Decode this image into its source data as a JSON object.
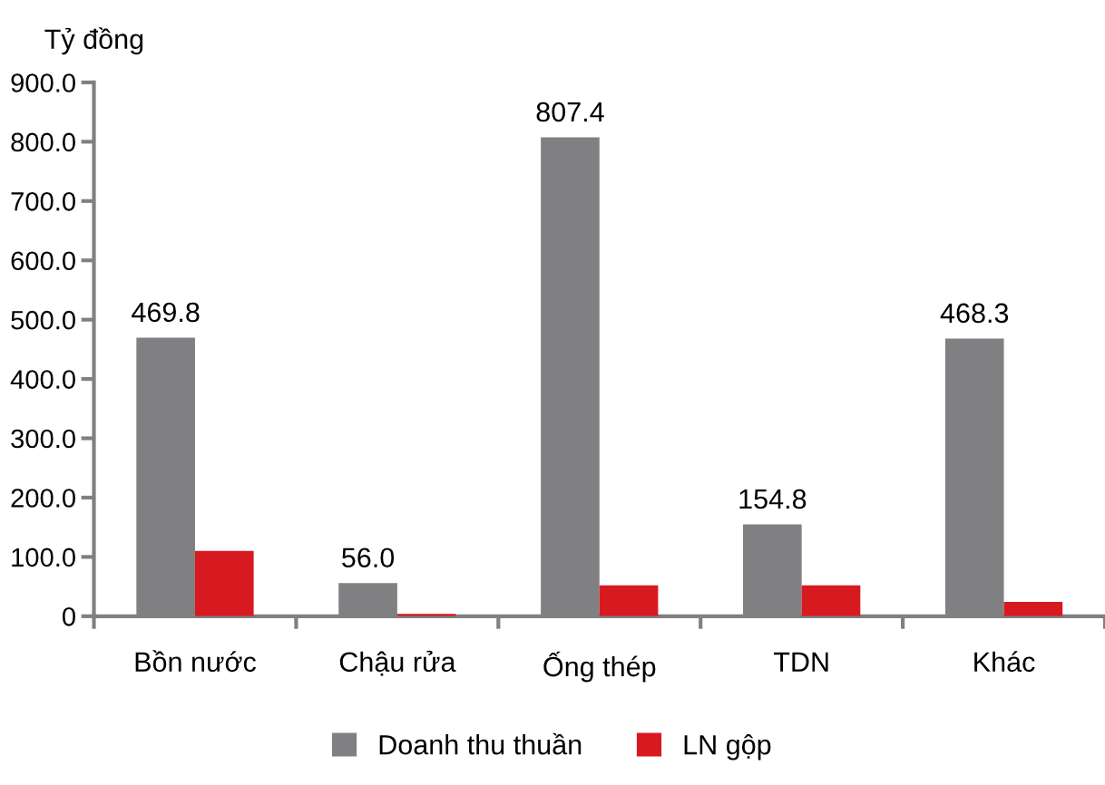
{
  "chart_data": {
    "type": "bar",
    "ylabel": "Tỷ đồng",
    "categories": [
      "Bồn nước",
      "Chậu rửa",
      "Ống thép",
      "TDN",
      "Khác"
    ],
    "series": [
      {
        "name": "Doanh thu thuần",
        "color": "#808083",
        "values": [
          469.8,
          56.0,
          807.4,
          154.8,
          468.3
        ],
        "value_labels": [
          "469.8",
          "56.0",
          "807.4",
          "154.8",
          "468.3"
        ]
      },
      {
        "name": "LN gộp",
        "color": "#d71920",
        "values": [
          110,
          4,
          52,
          52,
          24
        ]
      }
    ],
    "ylim": [
      0,
      900
    ],
    "yticks": [
      {
        "value": 0,
        "label": "0"
      },
      {
        "value": 100,
        "label": "100.0"
      },
      {
        "value": 200,
        "label": "200.0"
      },
      {
        "value": 300,
        "label": "300.0"
      },
      {
        "value": 400,
        "label": "400.0"
      },
      {
        "value": 500,
        "label": "500.0"
      },
      {
        "value": 600,
        "label": "600.0"
      },
      {
        "value": 700,
        "label": "700.0"
      },
      {
        "value": 800,
        "label": "800.0"
      },
      {
        "value": 900,
        "label": "900.0"
      }
    ],
    "grid": false,
    "legend": "bottom"
  }
}
